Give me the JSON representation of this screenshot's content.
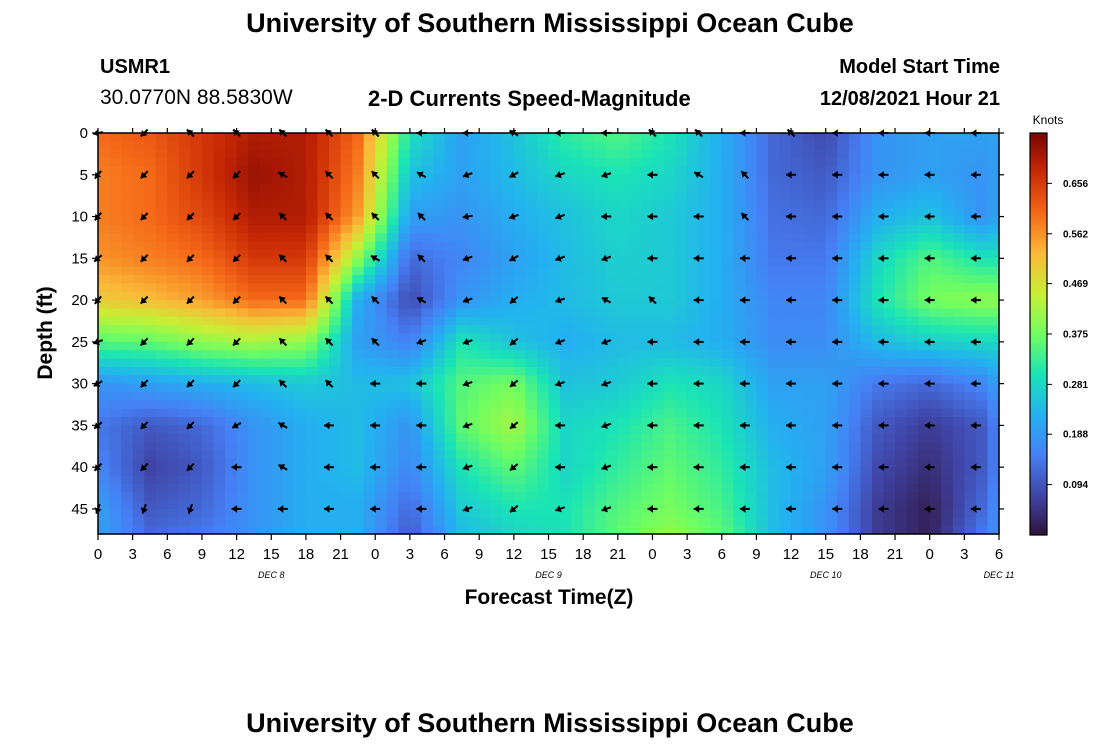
{
  "header": {
    "title": "University of Southern Mississippi Ocean Cube",
    "station": "USMR1",
    "coords": "30.0770N  88.5830W",
    "subtitle": "2-D Currents Speed-Magnitude",
    "model_label": "Model Start Time",
    "model_time": "12/08/2021 Hour 21"
  },
  "footer": {
    "title": "University of Southern Mississippi Ocean Cube"
  },
  "chart_data": {
    "type": "heatmap",
    "xlabel": "Forecast Time(Z)",
    "ylabel": "Depth (ft)",
    "x_ticks": [
      "0",
      "3",
      "6",
      "9",
      "12",
      "15",
      "18",
      "21",
      "0",
      "3",
      "6",
      "9",
      "12",
      "15",
      "18",
      "21",
      "0",
      "3",
      "6",
      "9",
      "12",
      "15",
      "18",
      "21",
      "0",
      "3",
      "6"
    ],
    "day_labels": [
      {
        "text": "DEC 8",
        "hour": 15
      },
      {
        "text": "DEC 9",
        "hour": 39
      },
      {
        "text": "DEC 10",
        "hour": 63
      },
      {
        "text": "DEC 11",
        "hour": 78
      }
    ],
    "xlim": [
      0,
      78
    ],
    "y_ticks": [
      0,
      5,
      10,
      15,
      20,
      25,
      30,
      35,
      40,
      45
    ],
    "ylim": [
      0,
      48
    ],
    "colorbar": {
      "label": "Knots",
      "min": 0.0,
      "max": 0.75,
      "ticks": [
        "0.656",
        "0.562",
        "0.469",
        "0.375",
        "0.281",
        "0.188",
        "0.094"
      ],
      "tick_values": [
        0.656,
        0.562,
        0.469,
        0.375,
        0.281,
        0.188,
        0.094
      ]
    },
    "speed_hours": [
      0,
      4.5,
      9,
      13.5,
      18,
      22.5,
      27,
      31.5,
      36,
      40.5,
      45,
      49.5,
      54,
      58.5,
      63,
      67.5,
      72,
      76.5,
      78
    ],
    "speed_depths": [
      0,
      5,
      10,
      15,
      20,
      25,
      30,
      35,
      40,
      45,
      48
    ],
    "speed": [
      [
        0.6,
        0.62,
        0.66,
        0.7,
        0.7,
        0.6,
        0.3,
        0.2,
        0.25,
        0.32,
        0.35,
        0.3,
        0.22,
        0.12,
        0.08,
        0.18,
        0.2,
        0.2,
        0.2
      ],
      [
        0.58,
        0.6,
        0.66,
        0.72,
        0.7,
        0.58,
        0.25,
        0.2,
        0.24,
        0.28,
        0.3,
        0.28,
        0.22,
        0.12,
        0.1,
        0.18,
        0.2,
        0.18,
        0.2
      ],
      [
        0.58,
        0.6,
        0.64,
        0.7,
        0.7,
        0.55,
        0.2,
        0.18,
        0.22,
        0.25,
        0.28,
        0.26,
        0.22,
        0.13,
        0.12,
        0.22,
        0.25,
        0.18,
        0.2
      ],
      [
        0.56,
        0.58,
        0.6,
        0.66,
        0.66,
        0.4,
        0.12,
        0.16,
        0.2,
        0.24,
        0.27,
        0.26,
        0.22,
        0.14,
        0.14,
        0.28,
        0.35,
        0.3,
        0.3
      ],
      [
        0.5,
        0.52,
        0.55,
        0.6,
        0.6,
        0.22,
        0.08,
        0.18,
        0.22,
        0.24,
        0.26,
        0.26,
        0.22,
        0.16,
        0.16,
        0.3,
        0.38,
        0.4,
        0.4
      ],
      [
        0.35,
        0.36,
        0.4,
        0.42,
        0.4,
        0.2,
        0.15,
        0.3,
        0.25,
        0.22,
        0.24,
        0.24,
        0.22,
        0.17,
        0.17,
        0.24,
        0.27,
        0.28,
        0.28
      ],
      [
        0.18,
        0.2,
        0.22,
        0.24,
        0.26,
        0.24,
        0.25,
        0.35,
        0.38,
        0.25,
        0.26,
        0.3,
        0.28,
        0.2,
        0.2,
        0.14,
        0.12,
        0.16,
        0.2
      ],
      [
        0.14,
        0.1,
        0.12,
        0.18,
        0.22,
        0.24,
        0.18,
        0.36,
        0.42,
        0.28,
        0.3,
        0.34,
        0.3,
        0.22,
        0.2,
        0.1,
        0.06,
        0.1,
        0.16
      ],
      [
        0.16,
        0.07,
        0.1,
        0.18,
        0.22,
        0.24,
        0.16,
        0.3,
        0.36,
        0.28,
        0.32,
        0.36,
        0.32,
        0.24,
        0.2,
        0.08,
        0.04,
        0.1,
        0.16
      ],
      [
        0.2,
        0.1,
        0.12,
        0.18,
        0.22,
        0.22,
        0.12,
        0.26,
        0.3,
        0.3,
        0.35,
        0.38,
        0.34,
        0.24,
        0.18,
        0.06,
        0.02,
        0.12,
        0.18
      ],
      [
        0.2,
        0.12,
        0.14,
        0.18,
        0.22,
        0.22,
        0.1,
        0.24,
        0.28,
        0.3,
        0.36,
        0.4,
        0.36,
        0.24,
        0.18,
        0.06,
        0.02,
        0.14,
        0.18
      ]
    ],
    "vector_hours": [
      0,
      4,
      8,
      12,
      16,
      20,
      24,
      28,
      32,
      36,
      40,
      44,
      48,
      52,
      56,
      60,
      64,
      68,
      72,
      76
    ],
    "vector_depths": [
      0,
      5,
      10,
      15,
      20,
      25,
      30,
      35,
      40,
      45
    ],
    "vector_dir_deg": [
      [
        260,
        225,
        315,
        315,
        315,
        315,
        315,
        270,
        270,
        300,
        270,
        270,
        315,
        315,
        270,
        315,
        270,
        270,
        270,
        270
      ],
      [
        220,
        225,
        225,
        225,
        300,
        315,
        315,
        300,
        250,
        240,
        250,
        250,
        270,
        300,
        315,
        270,
        270,
        270,
        270,
        270
      ],
      [
        220,
        225,
        225,
        225,
        315,
        315,
        315,
        315,
        260,
        250,
        250,
        270,
        270,
        270,
        315,
        270,
        270,
        270,
        270,
        270
      ],
      [
        230,
        225,
        225,
        225,
        315,
        315,
        300,
        315,
        250,
        240,
        250,
        250,
        270,
        270,
        270,
        270,
        270,
        270,
        270,
        270
      ],
      [
        220,
        225,
        225,
        225,
        315,
        315,
        315,
        300,
        250,
        230,
        250,
        300,
        315,
        270,
        270,
        270,
        270,
        270,
        270,
        270
      ],
      [
        250,
        225,
        225,
        225,
        315,
        315,
        315,
        250,
        250,
        230,
        250,
        250,
        270,
        270,
        270,
        270,
        270,
        270,
        270,
        270
      ],
      [
        240,
        225,
        225,
        225,
        315,
        315,
        270,
        270,
        250,
        230,
        250,
        250,
        270,
        270,
        270,
        270,
        270,
        270,
        270,
        270
      ],
      [
        230,
        225,
        225,
        240,
        300,
        270,
        270,
        270,
        250,
        230,
        270,
        250,
        270,
        270,
        270,
        270,
        270,
        270,
        270,
        270
      ],
      [
        225,
        225,
        225,
        270,
        300,
        270,
        270,
        270,
        250,
        230,
        270,
        250,
        270,
        270,
        270,
        270,
        270,
        270,
        270,
        270
      ],
      [
        200,
        200,
        200,
        270,
        270,
        270,
        270,
        270,
        250,
        230,
        250,
        250,
        270,
        270,
        270,
        270,
        270,
        270,
        270,
        270
      ]
    ]
  }
}
